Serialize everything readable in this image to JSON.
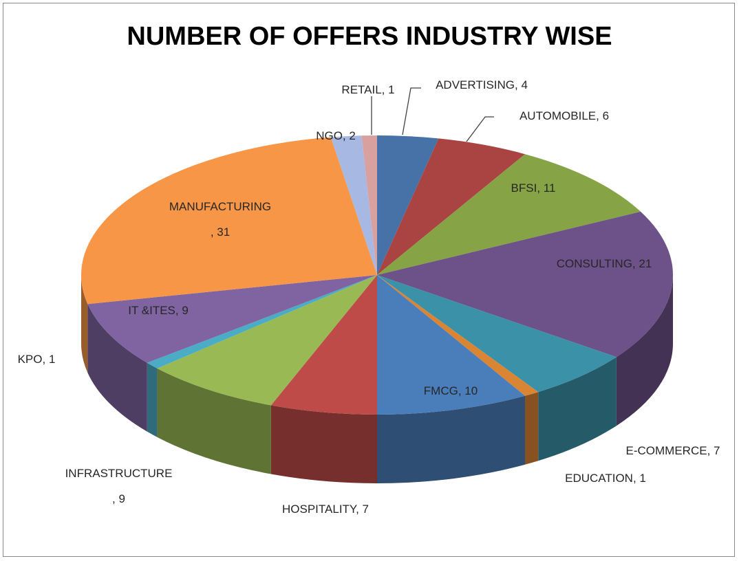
{
  "chart_data": {
    "type": "pie",
    "title": "NUMBER OF OFFERS INDUSTRY WISE",
    "values": [
      4,
      6,
      11,
      21,
      7,
      1,
      10,
      7,
      9,
      1,
      9,
      31,
      2,
      1
    ],
    "value_labels": [
      "ADVERTISING, 4",
      "AUTOMOBILE, 6",
      "BFSI, 11",
      "CONSULTING, 21",
      "E-COMMERCE, 7",
      "EDUCATION, 1",
      "FMCG, 10",
      "HOSPITALITY, 7",
      "INFRASTRUCTURE\n, 9",
      "KPO, 1",
      "IT &ITES, 9",
      "MANUFACTURING\n, 31",
      "NGO, 2",
      "RETAIL, 1"
    ],
    "colors": [
      "#4672a8",
      "#a94442",
      "#86a345",
      "#6d5189",
      "#3b91a7",
      "#d98533",
      "#4a7ebb",
      "#be4b48",
      "#98b954",
      "#4bacc6",
      "#8064a2",
      "#f79646",
      "#a7b9e3",
      "#d9a0a0"
    ]
  }
}
